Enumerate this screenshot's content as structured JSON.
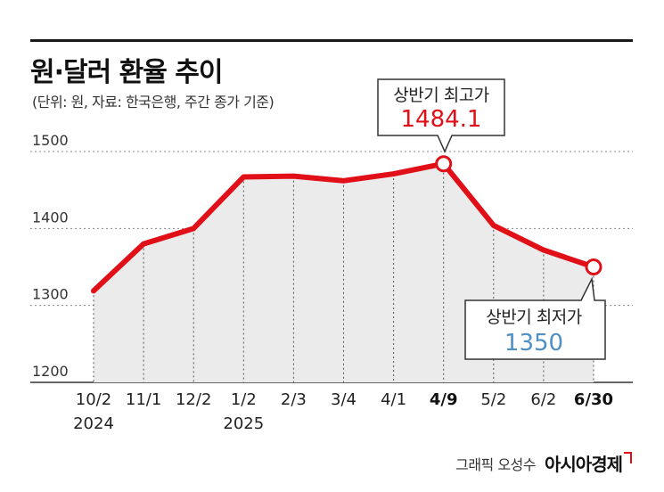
{
  "header": {
    "title": "원·달러 환율 추이",
    "subtitle": "(단위: 원, 자료: 한국은행, 주간 종가 기준)"
  },
  "chart_data": {
    "type": "area",
    "title": "원·달러 환율 추이",
    "unit": "원",
    "categories": [
      "10/2",
      "11/1",
      "12/2",
      "1/2",
      "2/3",
      "3/4",
      "4/1",
      "4/9",
      "5/2",
      "6/2",
      "6/30"
    ],
    "year_labels": [
      "2024",
      "",
      "",
      "2025",
      "",
      "",
      "",
      "",
      "",
      "",
      ""
    ],
    "bold_categories": [
      "4/9",
      "6/30"
    ],
    "series": [
      {
        "name": "원·달러 환율",
        "color": "#e10f17",
        "values": [
          1319,
          1380,
          1400,
          1467,
          1468,
          1462,
          1471,
          1484.1,
          1404,
          1372,
          1350
        ]
      }
    ],
    "y_ticks": [
      1200,
      1300,
      1400,
      1500
    ],
    "ylim": [
      1200,
      1500
    ],
    "grid": true,
    "annotations": [
      {
        "label": "상반기 최고가",
        "value_text": "1484.1",
        "category": "4/9",
        "value": 1484.1
      },
      {
        "label": "상반기 최저가",
        "value_text": "1350",
        "category": "6/30",
        "value": 1350
      }
    ]
  },
  "footer": {
    "credit": "그래픽 오성수",
    "brand": "아시아경제"
  }
}
